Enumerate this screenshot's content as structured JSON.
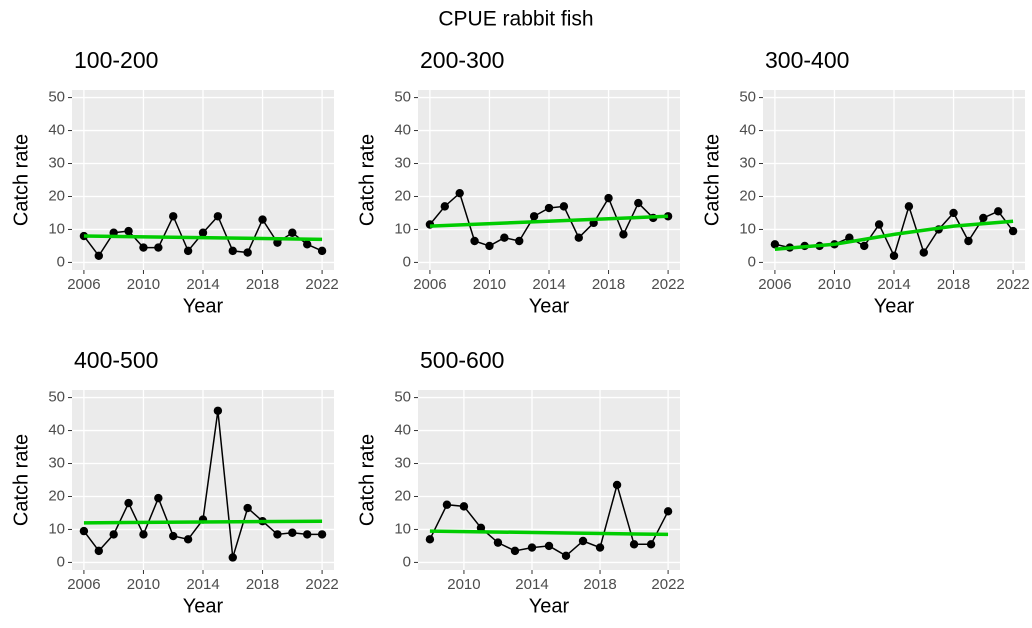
{
  "title": "CPUE rabbit fish",
  "chart_data": [
    {
      "type": "line",
      "title": "100-200",
      "xlabel": "Year",
      "ylabel": "Catch rate",
      "x": [
        2006,
        2007,
        2008,
        2009,
        2010,
        2011,
        2012,
        2013,
        2014,
        2015,
        2016,
        2017,
        2018,
        2019,
        2020,
        2021,
        2022
      ],
      "series": [
        {
          "color": "#000000",
          "values": [
            8,
            2,
            9,
            9.5,
            4.5,
            4.5,
            14,
            3.5,
            9,
            14,
            3.5,
            3,
            13,
            6,
            9,
            5.5,
            3.5
          ]
        }
      ],
      "trend": {
        "color": "#00cc00",
        "x": [
          2006,
          2022
        ],
        "values": [
          8,
          7
        ]
      },
      "xlim": [
        2005.2,
        2022.8
      ],
      "xticks": [
        2006,
        2010,
        2014,
        2018,
        2022
      ],
      "ylim": [
        -2.3,
        52.3
      ],
      "yticks": [
        0,
        10,
        20,
        30,
        40,
        50
      ],
      "grid": true
    },
    {
      "type": "line",
      "title": "200-300",
      "xlabel": "Year",
      "ylabel": "Catch rate",
      "x": [
        2006,
        2007,
        2008,
        2009,
        2010,
        2011,
        2012,
        2013,
        2014,
        2015,
        2016,
        2017,
        2018,
        2019,
        2020,
        2021,
        2022
      ],
      "series": [
        {
          "color": "#000000",
          "values": [
            11.5,
            17,
            21,
            6.5,
            5,
            7.5,
            6.5,
            14,
            16.5,
            17,
            7.5,
            12,
            19.5,
            8.5,
            18,
            13.5,
            14
          ]
        }
      ],
      "trend": {
        "color": "#00cc00",
        "x": [
          2006,
          2022
        ],
        "values": [
          11,
          14
        ]
      },
      "xlim": [
        2005.2,
        2022.8
      ],
      "xticks": [
        2006,
        2010,
        2014,
        2018,
        2022
      ],
      "ylim": [
        -2.3,
        52.3
      ],
      "yticks": [
        0,
        10,
        20,
        30,
        40,
        50
      ],
      "grid": true
    },
    {
      "type": "line",
      "title": "300-400",
      "xlabel": "Year",
      "ylabel": "Catch rate",
      "x": [
        2006,
        2007,
        2008,
        2009,
        2010,
        2011,
        2012,
        2013,
        2014,
        2015,
        2016,
        2017,
        2018,
        2019,
        2020,
        2021,
        2022
      ],
      "series": [
        {
          "color": "#000000",
          "values": [
            5.5,
            4.5,
            5,
            5,
            5.5,
            7.5,
            5,
            11.5,
            2,
            17,
            3,
            10,
            15,
            6.5,
            13.5,
            15.5,
            9.5
          ]
        }
      ],
      "trend": {
        "color": "#00cc00",
        "x": [
          2006,
          2010,
          2014,
          2018,
          2022
        ],
        "values": [
          4,
          5.5,
          8.5,
          11,
          12.5
        ]
      },
      "xlim": [
        2005.2,
        2022.8
      ],
      "xticks": [
        2006,
        2010,
        2014,
        2018,
        2022
      ],
      "ylim": [
        -2.3,
        52.3
      ],
      "yticks": [
        0,
        10,
        20,
        30,
        40,
        50
      ],
      "grid": true
    },
    {
      "type": "line",
      "title": "400-500",
      "xlabel": "Year",
      "ylabel": "Catch rate",
      "x": [
        2006,
        2007,
        2008,
        2009,
        2010,
        2011,
        2012,
        2013,
        2014,
        2015,
        2016,
        2017,
        2018,
        2019,
        2020,
        2021,
        2022
      ],
      "series": [
        {
          "color": "#000000",
          "values": [
            9.5,
            3.5,
            8.5,
            18,
            8.5,
            19.5,
            8,
            7,
            13,
            46,
            1.5,
            16.5,
            12.5,
            8.5,
            9,
            8.5,
            8.5
          ]
        }
      ],
      "trend": {
        "color": "#00cc00",
        "x": [
          2006,
          2022
        ],
        "values": [
          12,
          12.5
        ]
      },
      "xlim": [
        2005.2,
        2022.8
      ],
      "xticks": [
        2006,
        2010,
        2014,
        2018,
        2022
      ],
      "ylim": [
        -2.3,
        52.3
      ],
      "yticks": [
        0,
        10,
        20,
        30,
        40,
        50
      ],
      "grid": true
    },
    {
      "type": "line",
      "title": "500-600",
      "xlabel": "Year",
      "ylabel": "Catch rate",
      "x": [
        2008,
        2009,
        2010,
        2011,
        2012,
        2013,
        2014,
        2015,
        2016,
        2017,
        2018,
        2019,
        2020,
        2021,
        2022
      ],
      "series": [
        {
          "color": "#000000",
          "values": [
            7,
            17.5,
            17,
            10.5,
            6,
            3.5,
            4.5,
            5,
            2,
            6.5,
            4.5,
            23.5,
            5.5,
            5.5,
            15.5
          ]
        }
      ],
      "trend": {
        "color": "#00cc00",
        "x": [
          2008,
          2022
        ],
        "values": [
          9.5,
          8.5
        ]
      },
      "xlim": [
        2007.3,
        2022.7
      ],
      "xticks": [
        2010,
        2014,
        2018,
        2022
      ],
      "ylim": [
        -2.3,
        52.3
      ],
      "yticks": [
        0,
        10,
        20,
        30,
        40,
        50
      ],
      "grid": true
    }
  ]
}
